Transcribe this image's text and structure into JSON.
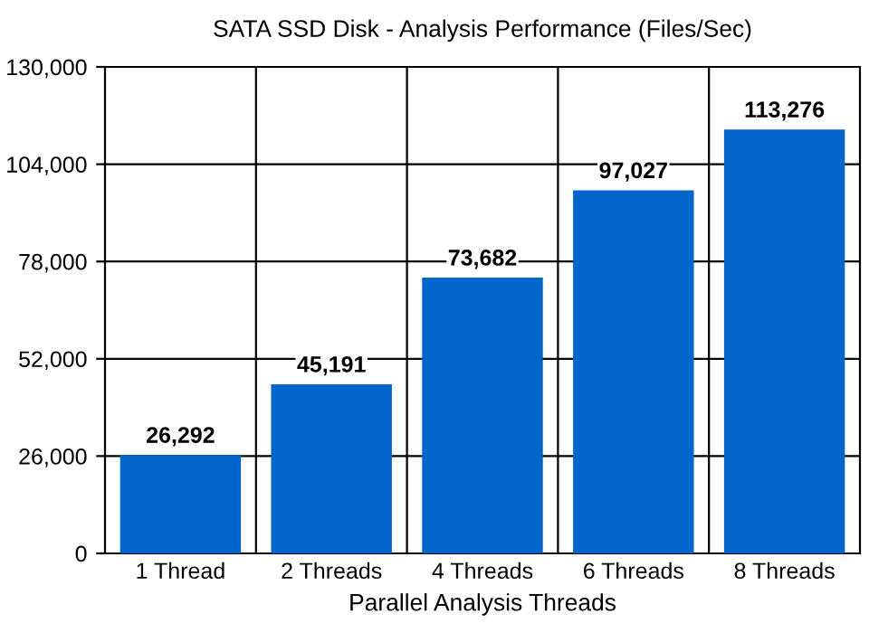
{
  "chart_data": {
    "type": "bar",
    "title": "SATA SSD Disk - Analysis Performance (Files/Sec)",
    "xlabel": "Parallel Analysis Threads",
    "categories": [
      "1 Thread",
      "2 Threads",
      "4 Threads",
      "6 Threads",
      "8 Threads"
    ],
    "values": [
      26292,
      45191,
      73682,
      97027,
      113276
    ],
    "color": "#0066cc",
    "ylim": [
      0,
      130000
    ],
    "yticks": [
      {
        "value": 0,
        "label": "0"
      },
      {
        "value": 26000,
        "label": "26,000"
      },
      {
        "value": 52000,
        "label": "52,000"
      },
      {
        "value": 78000,
        "label": "78,000"
      },
      {
        "value": 104000,
        "label": "104,000"
      },
      {
        "value": 130000,
        "label": "130,000"
      }
    ],
    "value_labels": [
      "26,292",
      "45,191",
      "73,682",
      "97,027",
      "113,276"
    ],
    "grid": true
  }
}
